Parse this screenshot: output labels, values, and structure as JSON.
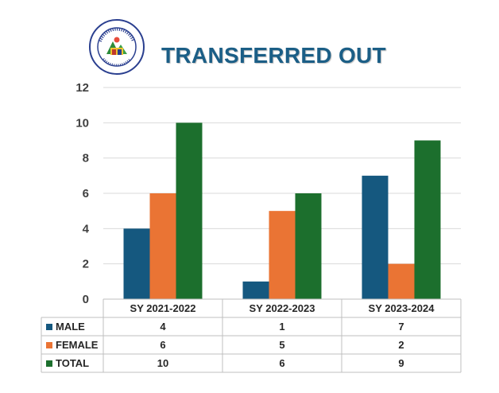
{
  "header": {
    "title": "TRANSFERRED OUT"
  },
  "logo": {
    "text": "MAMBOG ELEMENTARY SCHOOL · CITY OF SAN FERNANDO"
  },
  "colors": {
    "male": "#15587f",
    "female": "#ea7434",
    "total": "#1c6f2d",
    "title": "#1b5e86"
  },
  "chart_data": {
    "type": "bar",
    "title": "TRANSFERRED OUT",
    "categories": [
      "SY 2021-2022",
      "SY 2022-2023",
      "SY 2023-2024"
    ],
    "series": [
      {
        "name": "MALE",
        "values": [
          4,
          1,
          7
        ]
      },
      {
        "name": "FEMALE",
        "values": [
          6,
          5,
          2
        ]
      },
      {
        "name": "TOTAL",
        "values": [
          10,
          6,
          9
        ]
      }
    ],
    "ylim": [
      0,
      12
    ],
    "yticks": [
      0,
      2,
      4,
      6,
      8,
      10,
      12
    ],
    "grid": true,
    "legend": "data table below chart"
  }
}
